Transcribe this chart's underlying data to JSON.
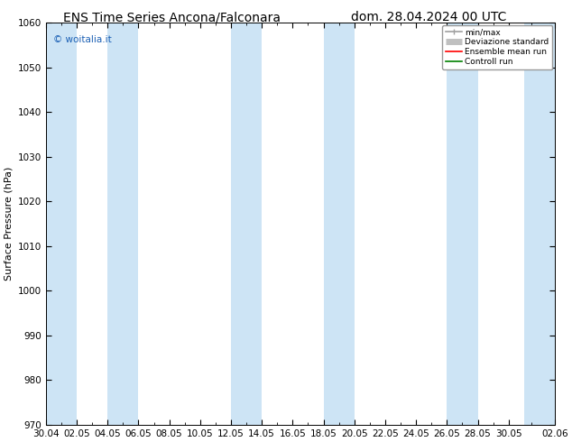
{
  "title_left": "ENS Time Series Ancona/Falconara",
  "title_right": "dom. 28.04.2024 00 UTC",
  "ylabel": "Surface Pressure (hPa)",
  "ylim": [
    970,
    1060
  ],
  "yticks": [
    970,
    980,
    990,
    1000,
    1010,
    1020,
    1030,
    1040,
    1050,
    1060
  ],
  "x_tick_labels": [
    "30.04",
    "02.05",
    "04.05",
    "06.05",
    "08.05",
    "10.05",
    "12.05",
    "14.05",
    "16.05",
    "18.05",
    "20.05",
    "22.05",
    "24.05",
    "26.05",
    "28.05",
    "30.05",
    "02.06"
  ],
  "watermark": "© woitalia.it",
  "legend_items": [
    {
      "label": "min/max",
      "color": "#a0a0a0",
      "lw": 1.2
    },
    {
      "label": "Deviazione standard",
      "color": "#c0c0c0",
      "lw": 5
    },
    {
      "label": "Ensemble mean run",
      "color": "red",
      "lw": 1.2
    },
    {
      "label": "Controll run",
      "color": "green",
      "lw": 1.2
    }
  ],
  "band_color": "#cde4f5",
  "band_alpha": 1.0,
  "background_color": "#ffffff",
  "title_fontsize": 10,
  "tick_fontsize": 7.5,
  "ylabel_fontsize": 8,
  "shaded_starts": [
    0,
    4,
    12,
    18,
    26,
    31
  ],
  "shaded_widths": [
    2,
    2,
    2,
    2,
    2,
    2
  ]
}
